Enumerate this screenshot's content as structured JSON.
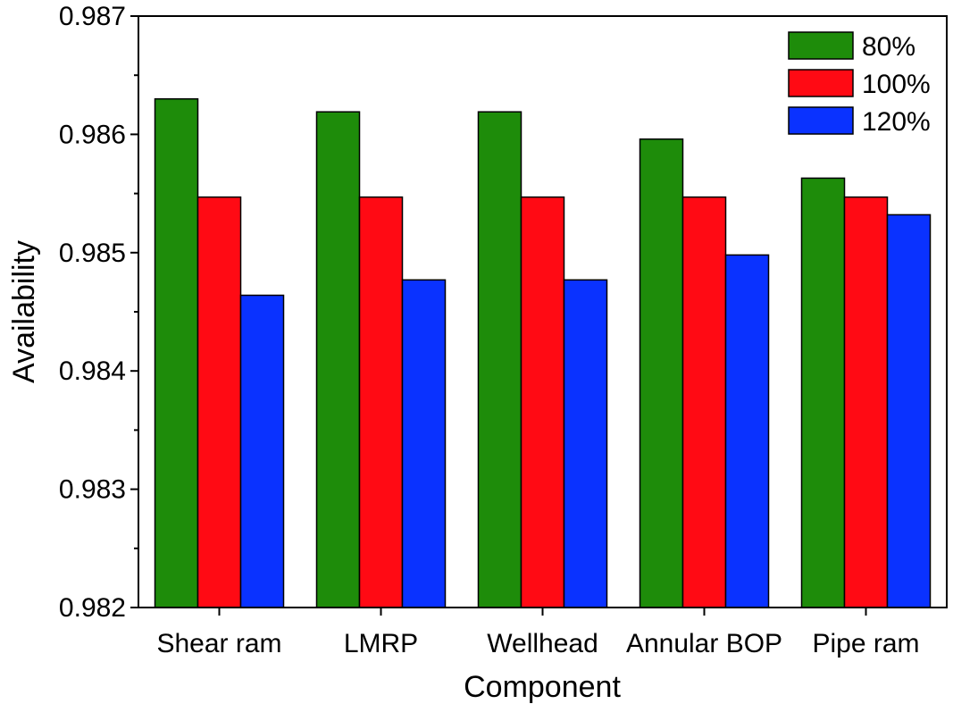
{
  "chart_data": {
    "type": "bar",
    "title": "",
    "xlabel": "Component",
    "ylabel": "Availability",
    "ylim": [
      0.982,
      0.987
    ],
    "yticks": [
      0.982,
      0.983,
      0.984,
      0.985,
      0.986,
      0.987
    ],
    "ytick_labels": [
      "0.982",
      "0.983",
      "0.984",
      "0.985",
      "0.986",
      "0.987"
    ],
    "y_minor_step": 0.0005,
    "categories": [
      "Shear ram",
      "LMRP",
      "Wellhead",
      "Annular BOP",
      "Pipe ram"
    ],
    "legend_position": "top-right",
    "series": [
      {
        "name": "80%",
        "color": "#1e8c0a",
        "values": [
          0.9863,
          0.98619,
          0.98619,
          0.98596,
          0.98563
        ]
      },
      {
        "name": "100%",
        "color": "#ff0a14",
        "values": [
          0.98547,
          0.98547,
          0.98547,
          0.98547,
          0.98547
        ]
      },
      {
        "name": "120%",
        "color": "#0a32ff",
        "values": [
          0.98464,
          0.98477,
          0.98477,
          0.98498,
          0.98532
        ]
      }
    ]
  }
}
